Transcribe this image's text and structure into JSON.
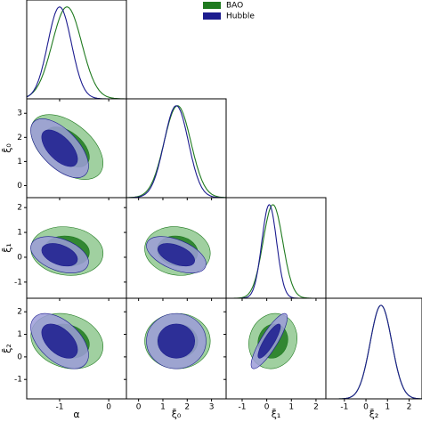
{
  "chart_data": {
    "type": "corner",
    "parameters": [
      {
        "label": "α",
        "lim": [
          -1.67,
          0.36
        ],
        "ticks": [
          -1,
          0
        ]
      },
      {
        "label": "ξ̄₀",
        "lim": [
          -0.5,
          3.6
        ],
        "ticks": [
          0,
          1,
          2,
          3
        ]
      },
      {
        "label": "ξ̄₁",
        "lim": [
          -1.65,
          2.4
        ],
        "ticks": [
          -1,
          0,
          1,
          2
        ]
      },
      {
        "label": "ξ̄₂",
        "lim": [
          -1.86,
          2.6
        ],
        "ticks": [
          -1,
          0,
          1,
          2
        ]
      }
    ],
    "series": [
      {
        "name": "BAO",
        "color": "#1f7a1f",
        "light_color": "#8fc88f",
        "mean": [
          -0.85,
          1.6,
          0.25,
          0.7
        ],
        "sigma": [
          0.3,
          0.55,
          0.4,
          0.5
        ],
        "corr": [
          [
            -0.5
          ],
          [
            -0.1,
            -0.1
          ],
          [
            -0.2,
            0.0,
            0.1
          ]
        ]
      },
      {
        "name": "Hubble",
        "color": "#1c1c8f",
        "light_color": "#9c9cd8",
        "mean": [
          -1.0,
          1.55,
          0.1,
          0.7
        ],
        "sigma": [
          0.24,
          0.5,
          0.3,
          0.5
        ],
        "corr": [
          [
            -0.6
          ],
          [
            -0.4,
            -0.5
          ],
          [
            -0.5,
            0.0,
            0.85
          ]
        ]
      }
    ],
    "legend": "upper right"
  }
}
